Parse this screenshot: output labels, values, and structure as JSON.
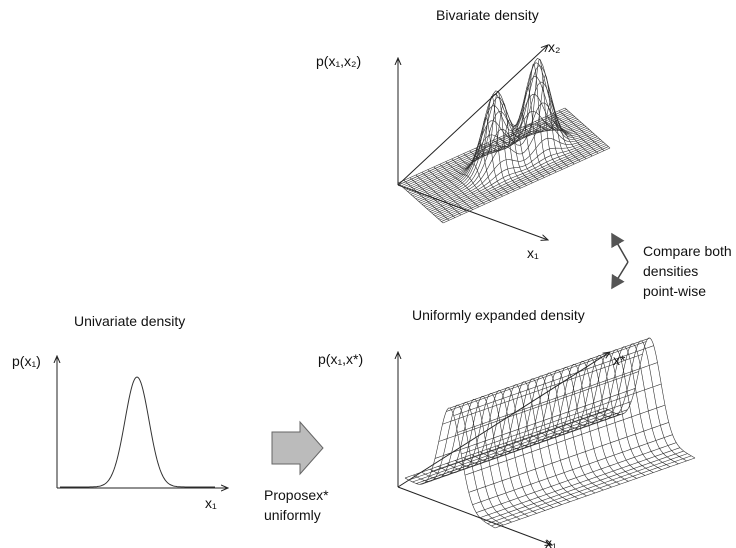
{
  "bivariate": {
    "title": "Bivariate density",
    "y_label": "p(x₁,x₂)",
    "x2_label": "x₂",
    "x1_label": "x₁"
  },
  "compare": {
    "lines": [
      "Compare both",
      "densities",
      "point-wise"
    ]
  },
  "expanded": {
    "title": "Uniformly expanded density",
    "y_label": "p(x₁,x*)",
    "xstar_label": "x*",
    "x1_label": "x₁"
  },
  "univariate": {
    "title": "Univariate density",
    "y_label": "p(x₁)",
    "x1_label": "x₁"
  },
  "propose": {
    "lines": [
      "Proposex*",
      "uniformly"
    ]
  }
}
